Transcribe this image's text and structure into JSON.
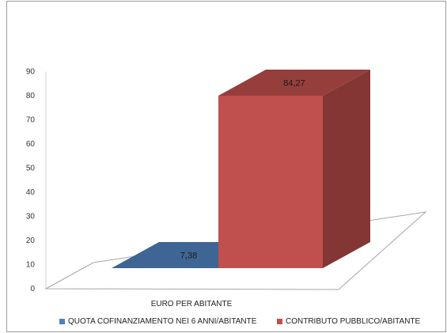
{
  "chart_data": {
    "type": "bar",
    "categories": [
      "EURO PER ABITANTE"
    ],
    "series": [
      {
        "name": "QUOTA COFINANZIAMENTO NEI 6 ANNI/ABITANTE",
        "values": [
          7.38
        ],
        "label": "7,38",
        "color": "#4f81bd"
      },
      {
        "name": "CONTRIBUTO PUBBLICO/ABITANTE",
        "values": [
          84.27
        ],
        "label": "84,27",
        "color": "#c0504d"
      }
    ],
    "ylim": [
      0,
      90
    ],
    "yticks": [
      "0",
      "10",
      "20",
      "30",
      "40",
      "50",
      "60",
      "70",
      "80",
      "90"
    ],
    "grid": false,
    "legend_position": "bottom",
    "style": "3d-column"
  }
}
